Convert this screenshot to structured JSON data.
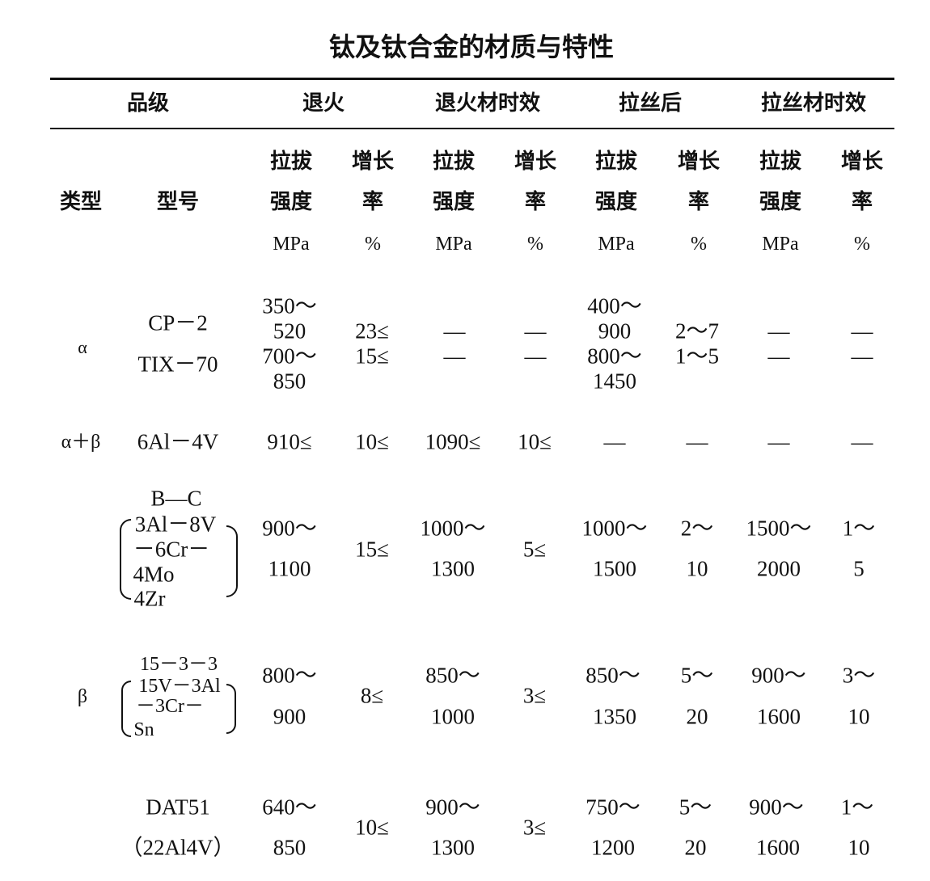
{
  "title": "钛及钛合金的材质与特性",
  "header": {
    "groups": [
      "品级",
      "退火",
      "退火材时效",
      "拉丝后",
      "拉丝材时效"
    ],
    "type": "类型",
    "model": "型号",
    "strength": [
      "拉拔",
      "强度",
      "MPa"
    ],
    "elongation": [
      "增长",
      "率",
      "%"
    ]
  },
  "rows": [
    {
      "type": "α",
      "model": [
        "CP－2",
        "TIX－70"
      ],
      "cells": [
        [
          "350～",
          "520",
          "700～",
          "850"
        ],
        [
          "23≤",
          "15≤"
        ],
        [
          "—",
          "—"
        ],
        [
          "—",
          "—"
        ],
        [
          "400～",
          "900",
          "800～",
          "1450"
        ],
        [
          "2～7",
          "1～5"
        ],
        [
          "—",
          "—"
        ],
        [
          "—",
          "—"
        ]
      ]
    },
    {
      "type": "α＋β",
      "model": [
        "6Al－4V"
      ],
      "cells": [
        [
          "910≤"
        ],
        [
          "10≤"
        ],
        [
          "1090≤"
        ],
        [
          "10≤"
        ],
        [
          "—"
        ],
        [
          "—"
        ],
        [
          "—"
        ],
        [
          "—"
        ]
      ]
    },
    {
      "type": "",
      "model": [
        "B—C",
        "3Al－8V",
        "－6Cr－",
        "4Mo",
        "4Zr"
      ],
      "cells": [
        [
          "900～",
          "1100"
        ],
        [
          "15≤"
        ],
        [
          "1000～",
          "1300"
        ],
        [
          "5≤"
        ],
        [
          "1000～",
          "1500"
        ],
        [
          "2～",
          "10"
        ],
        [
          "1500～",
          "2000"
        ],
        [
          "1～",
          "5"
        ]
      ]
    },
    {
      "type": "β",
      "model": [
        "15－3－3",
        "15V－3Al",
        "－3Cr－",
        "Sn"
      ],
      "cells": [
        [
          "800～",
          "900"
        ],
        [
          "8≤"
        ],
        [
          "850～",
          "1000"
        ],
        [
          "3≤"
        ],
        [
          "850～",
          "1350"
        ],
        [
          "5～",
          "20"
        ],
        [
          "900～",
          "1600"
        ],
        [
          "3～",
          "10"
        ]
      ]
    },
    {
      "type": "",
      "model": [
        "DAT51",
        "（22Al4V）"
      ],
      "cells": [
        [
          "640～",
          "850"
        ],
        [
          "10≤"
        ],
        [
          "900～",
          "1300"
        ],
        [
          "3≤"
        ],
        [
          "750～",
          "1200"
        ],
        [
          "5～",
          "20"
        ],
        [
          "900～",
          "1600"
        ],
        [
          "1～",
          "10"
        ]
      ]
    }
  ]
}
